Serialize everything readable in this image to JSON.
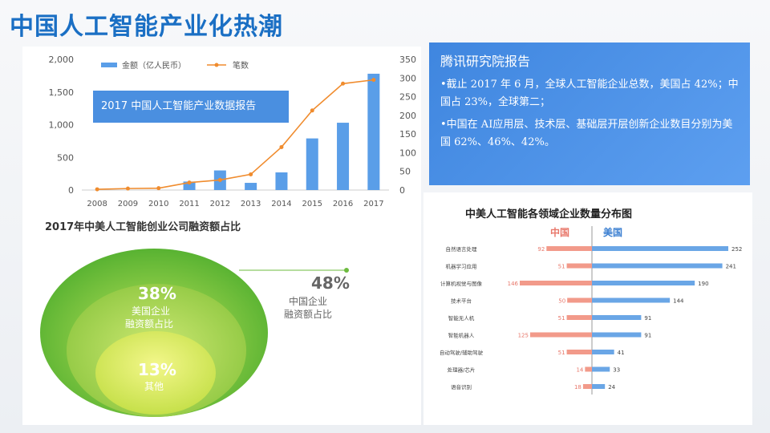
{
  "header": {
    "title": "中国人工智能产业化热潮"
  },
  "combo_chart": {
    "report_label": "2017 中国人工智能产业数据报告"
  },
  "tencent_box": {
    "heading": "腾讯研究院报告",
    "bullet1": "•截止 2017 年 6 月，全球人工智能企业总数，美国占 42%；中国占 23%，全球第二；",
    "bullet2": "•中国在 AI应用层、技术层、基础层开层创新企业数目分别为美国 62%、46%、42%。"
  },
  "pie_block": {
    "title": "2017年中美人工智能创业公司融资额占比",
    "outer_pct": "48%",
    "outer_label1": "中国企业",
    "outer_label2": "融资额占比",
    "mid_pct": "38%",
    "mid_label1": "美国企业",
    "mid_label2": "融资额占比",
    "inner_pct": "13%",
    "inner_label": "其他"
  },
  "bar_block": {
    "title": "中美人工智能各领域企业数量分布图",
    "left_label": "中国",
    "right_label": "美国"
  },
  "chart_data": [
    {
      "type": "bar+line",
      "categories": [
        "2008",
        "2009",
        "2010",
        "2011",
        "2012",
        "2013",
        "2014",
        "2015",
        "2016",
        "2017"
      ],
      "series": [
        {
          "name": "金额（亿人民币）",
          "type": "bar",
          "axis": "left",
          "values": [
            0,
            0,
            0,
            130,
            300,
            110,
            270,
            790,
            1030,
            1780
          ]
        },
        {
          "name": "笔数",
          "type": "line",
          "axis": "right",
          "values": [
            2,
            4,
            5,
            20,
            27,
            42,
            115,
            213,
            285,
            295
          ]
        }
      ],
      "yticks_left": [
        "0",
        "500",
        "1,000",
        "1,500",
        "2,000"
      ],
      "ylim_left": [
        0,
        2000
      ],
      "yticks_right": [
        "0",
        "50",
        "100",
        "150",
        "200",
        "250",
        "300",
        "350"
      ],
      "ylim_right": [
        0,
        350
      ],
      "colors": {
        "bar": "#5a9ee8",
        "line": "#f08c2e"
      }
    },
    {
      "type": "bar",
      "orientation": "horizontal-diverging",
      "categories": [
        "自然语言处理",
        "机器学习应用",
        "计算机视觉与图像",
        "技术平台",
        "智能无人机",
        "智能机器人",
        "自动驾驶/辅助驾驶",
        "处理器/芯片",
        "语音识别"
      ],
      "series": [
        {
          "name": "中国",
          "values": [
            92,
            51,
            146,
            50,
            51,
            125,
            51,
            14,
            18
          ]
        },
        {
          "name": "美国",
          "values": [
            252,
            241,
            190,
            144,
            91,
            91,
            41,
            33,
            24
          ]
        }
      ],
      "colors": {
        "中国": "#f29a8a",
        "美国": "#6aa6e6"
      }
    }
  ]
}
